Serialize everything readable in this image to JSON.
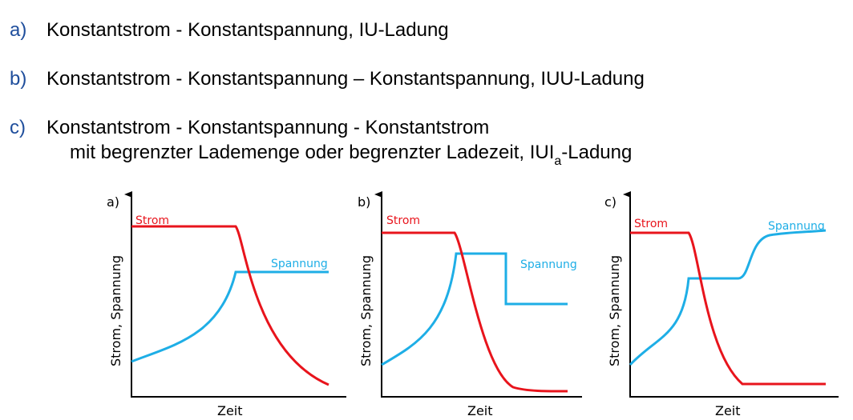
{
  "items": [
    {
      "marker": "a)",
      "text": "Konstantstrom - Konstantspannung, IU-Ladung"
    },
    {
      "marker": "b)",
      "text": "Konstantstrom - Konstantspannung – Konstantspannung, IUU-Ladung"
    },
    {
      "marker": "c)",
      "text": "Konstantstrom - Konstantspannung - Konstantstrom",
      "line2_pre": "mit begrenzter Lademenge oder begrenzter Ladezeit,  IUI",
      "line2_sub": "a",
      "line2_post": "-Ladung"
    }
  ],
  "diagrams": [
    {
      "label": "a)",
      "ylabel": "Strom, Spannung",
      "xlabel": "Zeit",
      "strom": "Strom",
      "spannung": "Spannung"
    },
    {
      "label": "b)",
      "ylabel": "Strom, Spannung",
      "xlabel": "Zeit",
      "strom": "Strom",
      "spannung": "Spannung"
    },
    {
      "label": "c)",
      "ylabel": "Strom, Spannung",
      "xlabel": "Zeit",
      "strom": "Strom",
      "spannung": "Spannung"
    }
  ],
  "colors": {
    "marker": "#1f4e9c",
    "strom": "#e8141c",
    "spannung": "#1eaee6",
    "axis": "#000000"
  }
}
